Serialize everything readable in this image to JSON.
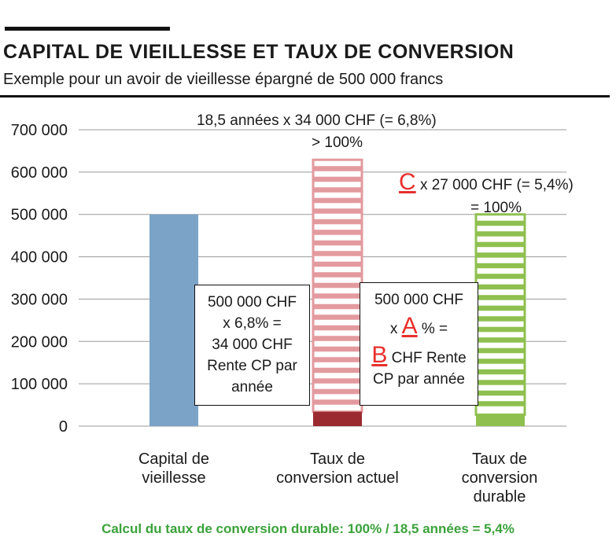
{
  "header": {
    "title": "CAPITAL DE VIEILLESSE ET TAUX DE CONVERSION",
    "subtitle": "Exemple pour un avoir de vieillesse épargné de 500 000 francs"
  },
  "chart_data": {
    "type": "bar",
    "ylim": [
      0,
      700000
    ],
    "yticks": [
      0,
      100000,
      200000,
      300000,
      400000,
      500000,
      600000,
      700000
    ],
    "ytick_labels": [
      "0",
      "100 000",
      "200 000",
      "300 000",
      "400 000",
      "500 000",
      "600 000",
      "700 000"
    ],
    "grid": true,
    "categories": [
      [
        "Capital de",
        "vieillesse"
      ],
      [
        "Taux de",
        "conversion actuel"
      ],
      [
        "Taux de",
        "conversion",
        "durable"
      ]
    ],
    "bars": [
      {
        "value": 500000,
        "style": "solid",
        "color": "#7ba3c7"
      },
      {
        "value": 629000,
        "style": "striped",
        "color": "#e39a9e",
        "base_value": 34000,
        "base_color": "#9b2a30"
      },
      {
        "value": 500000,
        "style": "striped",
        "color": "#8fc04f",
        "base_value": 27000,
        "base_color": "#8fc04f"
      }
    ]
  },
  "annotations": {
    "current_line1": "18,5 années x 34 000 CHF  (= 6,8%)",
    "current_line2": "> 100%",
    "durable_letter": "C",
    "durable_line1": " x 27 000 CHF (= 5,4%)",
    "durable_line2": "= 100%",
    "box1": [
      "500 000 CHF",
      "x 6,8% =",
      "34 000 CHF",
      "Rente CP par",
      "année"
    ],
    "box2_line1": "500 000 CHF",
    "box2_x": "x ",
    "box2_letter_a": "A",
    "box2_pct": " % =",
    "box2_letter_b": "B",
    "box2_chf": " CHF  Rente",
    "box2_line4": "CP par année"
  },
  "footer": "Calcul du taux de conversion durable: 100% / 18,5 années = 5,4%"
}
